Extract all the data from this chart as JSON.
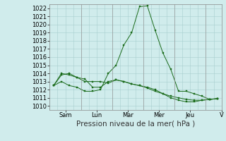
{
  "background_color": "#d0ecec",
  "grid_color": "#a8cece",
  "line_color": "#1a6b1a",
  "marker_color": "#1a6b1a",
  "xlabel": "Pression niveau de la mer( hPa )",
  "ylim": [
    1009.5,
    1022.5
  ],
  "yticks": [
    1010,
    1011,
    1012,
    1013,
    1014,
    1015,
    1016,
    1017,
    1018,
    1019,
    1020,
    1021,
    1022
  ],
  "day_labels": [
    "Sam",
    "Lun",
    "Mar",
    "Mer",
    "Jeu",
    "V"
  ],
  "n_days": 6,
  "points_per_day": 4,
  "series": [
    [
      1012.5,
      1014.0,
      1013.8,
      1013.5,
      1013.0,
      1013.0,
      1013.0,
      1012.8,
      1013.2,
      1013.0,
      1012.7,
      1012.5,
      1012.2,
      1011.8,
      1011.5,
      1011.2,
      1011.0,
      1010.8,
      1010.7,
      1010.7,
      1010.8,
      1010.9
    ],
    [
      1012.5,
      1013.0,
      1012.5,
      1012.3,
      1011.8,
      1011.8,
      1012.0,
      1014.0,
      1015.0,
      1017.5,
      1019.0,
      1022.2,
      1022.3,
      1019.3,
      1016.5,
      1014.5,
      1011.8,
      1011.8,
      1011.5,
      1011.2,
      1010.8,
      1010.9
    ],
    [
      1012.5,
      1013.8,
      1014.0,
      1013.5,
      1013.3,
      1012.3,
      1012.3,
      1013.0,
      1013.2,
      1013.0,
      1012.7,
      1012.5,
      1012.3,
      1012.0,
      1011.5,
      1011.0,
      1010.7,
      1010.5,
      1010.5,
      1010.7,
      1010.8,
      1010.9
    ]
  ],
  "figsize": [
    3.2,
    2.0
  ],
  "dpi": 100,
  "tick_fontsize": 6.0,
  "xlabel_fontsize": 7.5,
  "sep_color": "#999999",
  "spine_color": "#888888"
}
